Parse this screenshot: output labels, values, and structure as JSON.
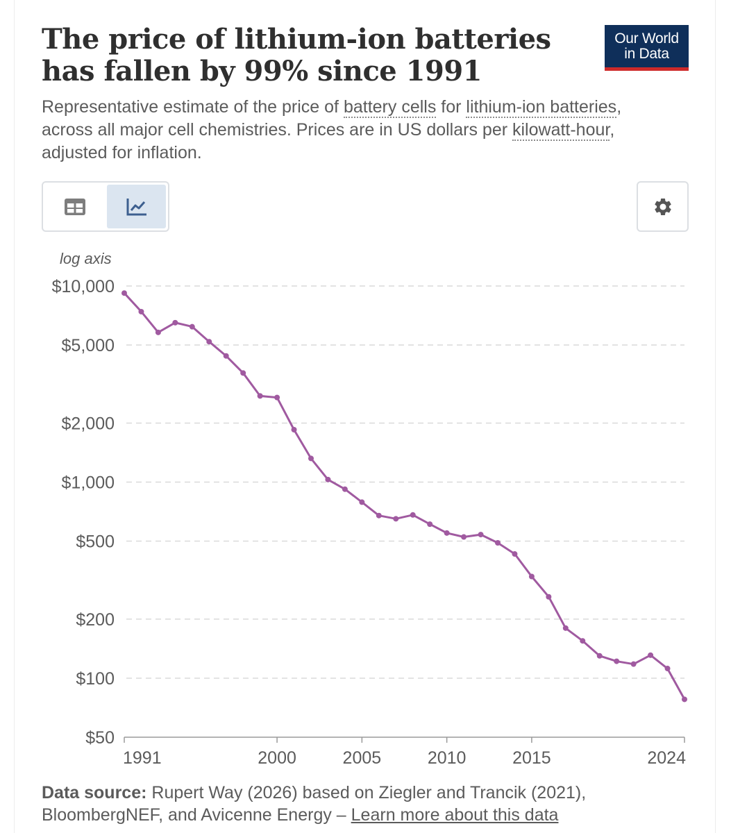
{
  "header": {
    "title": "The price of lithium-ion batteries has fallen by 99% since 1991",
    "logo_line1": "Our World",
    "logo_line2": "in Data"
  },
  "subtitle": {
    "part1": "Representative estimate of the price of ",
    "link1": "battery cells",
    "part2": " for ",
    "link2": "lithium-ion batteries",
    "part3": ", across all major cell chemistries. Prices are in US dollars per ",
    "link3": "kilowatt-hour",
    "part4": ", adjusted for inflation."
  },
  "controls": {
    "table_tab": "table-icon",
    "chart_tab": "line-chart-icon",
    "settings": "gear-icon"
  },
  "footer": {
    "label": "Data source:",
    "text": " Rupert Way (2026) based on Ziegler and Trancik (2021), BloombergNEF, and Avicenne Energy – ",
    "link": "Learn more about this data"
  },
  "colors": {
    "series": "#a05aa0",
    "logo_bg": "#0f2f5a",
    "logo_accent": "#ce2a2a",
    "active_tab": "#dbe5f0"
  },
  "chart_data": {
    "type": "line",
    "axis_note": "log axis",
    "yscale": "log",
    "ylim": [
      50,
      10000
    ],
    "xlim": [
      1991,
      2024
    ],
    "yticks": [
      {
        "value": 10000,
        "label": "$10,000"
      },
      {
        "value": 5000,
        "label": "$5,000"
      },
      {
        "value": 2000,
        "label": "$2,000"
      },
      {
        "value": 1000,
        "label": "$1,000"
      },
      {
        "value": 500,
        "label": "$500"
      },
      {
        "value": 200,
        "label": "$200"
      },
      {
        "value": 100,
        "label": "$100"
      },
      {
        "value": 50,
        "label": "$50"
      }
    ],
    "xticks": [
      {
        "value": 1991,
        "label": "1991"
      },
      {
        "value": 2000,
        "label": "2000"
      },
      {
        "value": 2005,
        "label": "2005"
      },
      {
        "value": 2010,
        "label": "2010"
      },
      {
        "value": 2015,
        "label": "2015"
      },
      {
        "value": 2024,
        "label": "2024"
      }
    ],
    "series": [
      {
        "name": "Lithium-ion battery cell price",
        "x": [
          1991,
          1992,
          1993,
          1994,
          1995,
          1996,
          1997,
          1998,
          1999,
          2000,
          2001,
          2002,
          2003,
          2004,
          2005,
          2006,
          2007,
          2008,
          2009,
          2010,
          2011,
          2012,
          2013,
          2014,
          2015,
          2016,
          2017,
          2018,
          2019,
          2020,
          2021,
          2022,
          2023,
          2024
        ],
        "values": [
          9200,
          7400,
          5800,
          6500,
          6200,
          5200,
          4400,
          3600,
          2750,
          2700,
          1850,
          1320,
          1030,
          920,
          790,
          675,
          650,
          680,
          610,
          550,
          525,
          540,
          490,
          430,
          330,
          260,
          180,
          155,
          130,
          122,
          118,
          131,
          112,
          78
        ]
      }
    ]
  }
}
